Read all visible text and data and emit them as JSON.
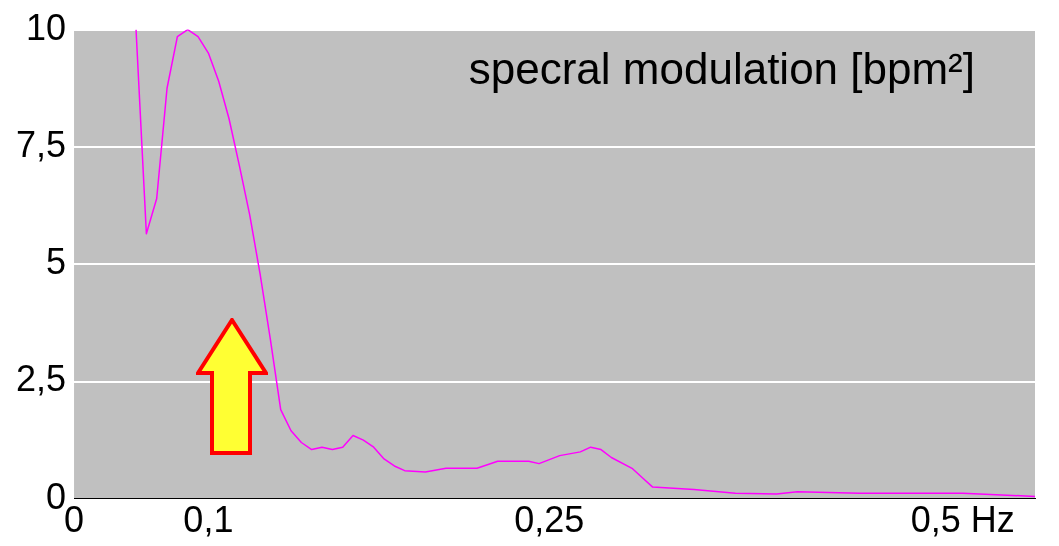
{
  "chart_data": {
    "type": "line",
    "title": "specral modulation [bpm²]",
    "categories": [
      "0",
      null,
      null,
      null,
      null,
      null,
      null,
      null,
      null,
      null,
      null,
      null,
      null,
      "0,1",
      null,
      null,
      null,
      null,
      null,
      null,
      null,
      null,
      null,
      null,
      null,
      null,
      null,
      null,
      null,
      null,
      null,
      null,
      null,
      null,
      null,
      null,
      null,
      null,
      null,
      null,
      null,
      null,
      null,
      null,
      null,
      null,
      "0,25",
      null,
      null,
      null,
      null,
      null,
      null,
      null,
      null,
      null,
      null,
      null,
      null,
      null,
      null,
      null,
      null,
      null,
      null,
      null,
      null,
      null,
      null,
      null,
      null,
      null,
      null,
      null,
      null,
      null,
      null,
      null,
      null,
      null,
      null,
      null,
      null,
      null,
      null,
      null,
      "0,5 Hz",
      null,
      null,
      null,
      null,
      null,
      null,
      null
    ],
    "series": [
      {
        "color": "#ff00ff",
        "values": [
          null,
          null,
          null,
          null,
          null,
          null,
          10,
          5.65,
          6.4,
          8.75,
          9.85,
          10,
          9.85,
          9.5,
          8.9,
          8.1,
          7.1,
          6.05,
          4.8,
          3.4,
          1.9,
          1.45,
          1.2,
          1.05,
          1.1,
          1.05,
          1.1,
          1.35,
          1.25,
          1.1,
          0.85,
          0.7,
          0.6,
          null,
          0.57,
          null,
          0.65,
          null,
          null,
          0.65,
          null,
          0.8,
          null,
          null,
          0.8,
          0.75,
          null,
          0.92,
          null,
          1.0,
          1.1,
          1.05,
          0.88,
          null,
          0.65,
          0.45,
          0.25,
          null,
          null,
          null,
          0.2,
          null,
          null,
          null,
          0.12,
          null,
          null,
          null,
          0.1,
          null,
          0.15,
          null,
          null,
          null,
          null,
          null,
          0.12,
          null,
          null,
          null,
          null,
          null,
          null,
          null,
          null,
          null,
          0.12,
          null,
          null,
          null,
          null,
          null,
          null,
          0.05
        ]
      }
    ],
    "ylim": [
      0,
      10
    ],
    "yticks": [
      0,
      {
        "value": 2.5,
        "label": "2,5"
      },
      5,
      {
        "value": 7.5,
        "label": "7,5"
      },
      10
    ],
    "grid": "y",
    "legend": false,
    "marker": "none",
    "line_style": "solid"
  }
}
